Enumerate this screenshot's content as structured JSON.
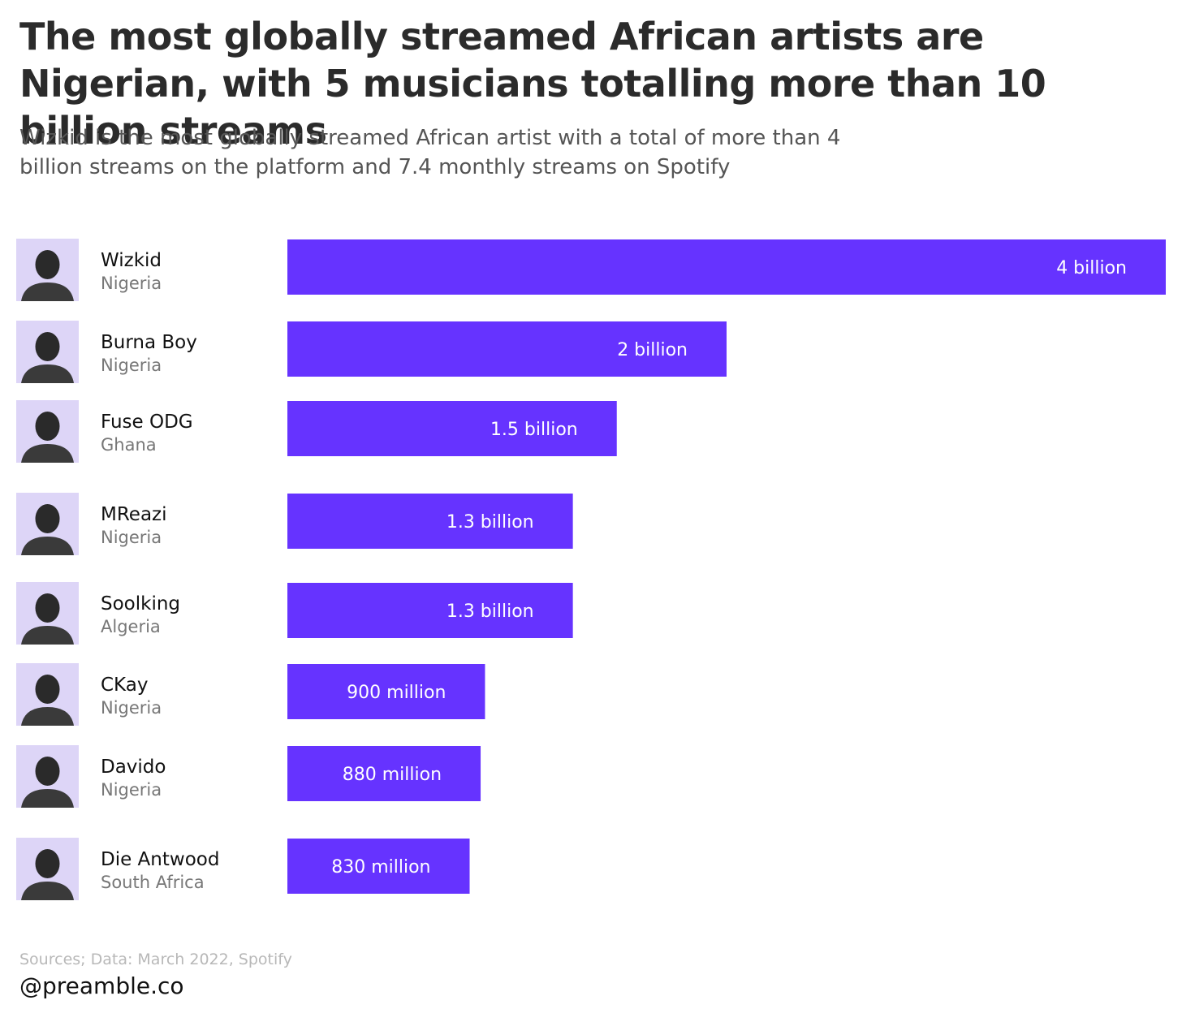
{
  "header": {
    "title": "The most globally streamed African artists are Nigerian, with 5 musicians totalling more than 10 billion streams",
    "subtitle": "Wizkid is the most globally streamed African artist with a total of more than 4 billion streams on the platform and 7.4 monthly streams on Spotify"
  },
  "footer": {
    "source": "Sources; Data: March 2022, Spotify",
    "handle": "@preamble.co"
  },
  "colors": {
    "bar": "#6633ff",
    "bar_label": "#ffffff",
    "avatar_bg": "#ddd5f7",
    "artist_name": "#111111",
    "artist_country": "#777777"
  },
  "chart_data": {
    "type": "bar",
    "orientation": "horizontal",
    "categories": [
      "Wizkid",
      "Burna Boy",
      "Fuse ODG",
      "MReazi",
      "Soolking",
      "CKay",
      "Davido",
      "Die Antwood"
    ],
    "countries": [
      "Nigeria",
      "Nigeria",
      "Ghana",
      "Nigeria",
      "Algeria",
      "Nigeria",
      "Nigeria",
      "South Africa"
    ],
    "values": [
      4000000000,
      2000000000,
      1500000000,
      1300000000,
      1300000000,
      900000000,
      880000000,
      830000000
    ],
    "value_labels": [
      "4 billion",
      "2 billion",
      "1.5 billion",
      "1.3 billion",
      "1.3 billion",
      "900 million",
      "880 million",
      "830 million"
    ],
    "xlim": [
      0,
      4000000000
    ],
    "grid": false,
    "legend": "none"
  }
}
